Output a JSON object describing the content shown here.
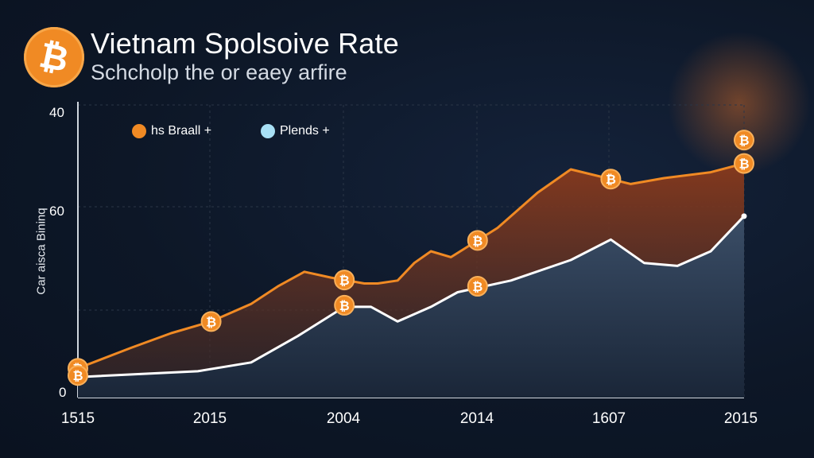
{
  "header": {
    "title": "Vietnam Spolsoive Rate",
    "subtitle": "Schcholp the or eaey arfire",
    "logo_icon": "bitcoin-icon",
    "logo_color": "#f08a24"
  },
  "legend": [
    {
      "label": "hs Braall +",
      "color": "#f08a24"
    },
    {
      "label": "Plends +",
      "color": "#a8e0f5"
    }
  ],
  "chart_data": {
    "type": "area",
    "title": "Vietnam Spolsoive Rate",
    "subtitle": "Schcholp the or eaey arfire",
    "xlabel": "",
    "ylabel": "Car aisca Bininq",
    "x_tick_labels": [
      "1515",
      "2015",
      "2004",
      "2014",
      "1607",
      "2015"
    ],
    "y_tick_labels": [
      "40",
      "60",
      "0"
    ],
    "grid": true,
    "legend_position": "top-left",
    "marker_icon": "bitcoin-icon",
    "series": [
      {
        "name": "hs Braall +",
        "color": "#f08a24",
        "points": [
          [
            0.0,
            0.1
          ],
          [
            0.8,
            0.17
          ],
          [
            1.4,
            0.22
          ],
          [
            2.0,
            0.26
          ],
          [
            2.6,
            0.32
          ],
          [
            3.0,
            0.38
          ],
          [
            3.4,
            0.43
          ],
          [
            3.8,
            0.41
          ],
          [
            4.3,
            0.39
          ],
          [
            4.5,
            0.39
          ],
          [
            4.8,
            0.4
          ],
          [
            5.05,
            0.46
          ],
          [
            5.3,
            0.5
          ],
          [
            5.6,
            0.48
          ],
          [
            6.3,
            0.58
          ],
          [
            6.9,
            0.7
          ],
          [
            7.4,
            0.78
          ],
          [
            8.3,
            0.73
          ],
          [
            8.8,
            0.75
          ],
          [
            9.5,
            0.77
          ],
          [
            10.0,
            0.8
          ]
        ],
        "markers": [
          0.0,
          2.0,
          4.0,
          6.0,
          8.0,
          10.0
        ]
      },
      {
        "name": "Plends +",
        "color": "#ffffff",
        "points": [
          [
            0.0,
            0.07
          ],
          [
            1.8,
            0.09
          ],
          [
            2.6,
            0.12
          ],
          [
            3.3,
            0.21
          ],
          [
            4.0,
            0.31
          ],
          [
            4.4,
            0.31
          ],
          [
            4.8,
            0.26
          ],
          [
            5.3,
            0.31
          ],
          [
            5.7,
            0.36
          ],
          [
            6.5,
            0.4
          ],
          [
            7.4,
            0.47
          ],
          [
            8.0,
            0.54
          ],
          [
            8.5,
            0.46
          ],
          [
            9.0,
            0.45
          ],
          [
            9.5,
            0.5
          ],
          [
            10.0,
            0.62
          ]
        ],
        "markers": [
          0.0,
          4.0,
          6.0
        ]
      }
    ]
  }
}
